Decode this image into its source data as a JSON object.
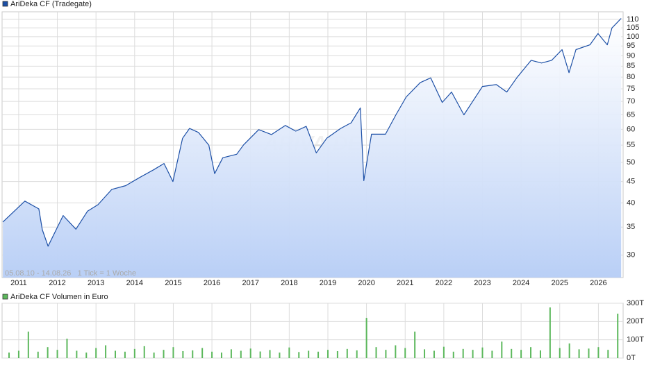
{
  "chart_data": [
    {
      "type": "line",
      "name": "AriDeka CF (Tradegate)",
      "annotation": "05.08.10 - 14.08.26   1 Tick = 1 Woche",
      "watermark": "ARIVA.DE",
      "color": "#1c4fa6",
      "fill_color": "#b9cff6",
      "log_scale": true,
      "grid": true,
      "x": [
        2010.59,
        2011.16,
        2011.52,
        2011.61,
        2011.76,
        2011.88,
        2012.15,
        2012.48,
        2012.78,
        2013.05,
        2013.41,
        2013.77,
        2014.13,
        2014.49,
        2014.76,
        2014.99,
        2015.24,
        2015.42,
        2015.65,
        2015.92,
        2016.07,
        2016.28,
        2016.64,
        2016.82,
        2017.21,
        2017.54,
        2017.9,
        2018.17,
        2018.44,
        2018.7,
        2018.97,
        2019.33,
        2019.6,
        2019.84,
        2019.93,
        2020.13,
        2020.49,
        2020.76,
        2021.03,
        2021.39,
        2021.66,
        2021.96,
        2022.2,
        2022.52,
        2022.73,
        2023.0,
        2023.36,
        2023.63,
        2023.9,
        2024.26,
        2024.53,
        2024.79,
        2025.06,
        2025.24,
        2025.42,
        2025.78,
        2025.99,
        2026.23,
        2026.35,
        2026.59
      ],
      "values": [
        36.0,
        40.4,
        38.7,
        34.5,
        31.5,
        33.2,
        37.3,
        34.6,
        38.2,
        39.6,
        43.1,
        44.0,
        46.0,
        48.0,
        49.7,
        45.0,
        57.1,
        60.3,
        59.0,
        55.0,
        47.0,
        51.3,
        52.3,
        55.1,
        59.9,
        58.3,
        61.3,
        59.4,
        61.0,
        52.7,
        57.1,
        60.3,
        62.2,
        67.5,
        45.2,
        58.4,
        58.4,
        65.0,
        71.8,
        77.6,
        79.7,
        69.6,
        73.7,
        65.0,
        69.6,
        76.0,
        76.8,
        73.7,
        80.0,
        87.8,
        86.5,
        87.8,
        93.1,
        82.0,
        93.1,
        95.6,
        101.7,
        95.6,
        104.9,
        110.6
      ],
      "xlim": [
        2010.57,
        2026.64
      ],
      "xticks": [
        2011,
        2012,
        2013,
        2014,
        2015,
        2016,
        2017,
        2018,
        2019,
        2020,
        2021,
        2022,
        2023,
        2024,
        2025,
        2026
      ],
      "ylim": [
        26.5,
        114.7
      ],
      "yticks": [
        30,
        35,
        40,
        45,
        50,
        55,
        60,
        65,
        70,
        75,
        80,
        85,
        90,
        95,
        100,
        105,
        110
      ]
    },
    {
      "type": "bar",
      "name": "AriDeka CF Volumen in Euro",
      "color": "#5cb85c",
      "grid": true,
      "x": [
        2010.75,
        2011.0,
        2011.25,
        2011.5,
        2011.75,
        2012.0,
        2012.25,
        2012.5,
        2012.75,
        2013.0,
        2013.25,
        2013.5,
        2013.75,
        2014.0,
        2014.25,
        2014.5,
        2014.75,
        2015.0,
        2015.25,
        2015.5,
        2015.75,
        2016.0,
        2016.25,
        2016.5,
        2016.75,
        2017.0,
        2017.25,
        2017.5,
        2017.75,
        2018.0,
        2018.25,
        2018.5,
        2018.75,
        2019.0,
        2019.25,
        2019.5,
        2019.75,
        2020.0,
        2020.25,
        2020.5,
        2020.75,
        2021.0,
        2021.25,
        2021.5,
        2021.75,
        2022.0,
        2022.25,
        2022.5,
        2022.75,
        2023.0,
        2023.25,
        2023.5,
        2023.75,
        2024.0,
        2024.25,
        2024.5,
        2024.75,
        2025.0,
        2025.25,
        2025.5,
        2025.75,
        2026.0,
        2026.25,
        2026.5
      ],
      "values": [
        30000,
        40000,
        145000,
        35000,
        60000,
        45000,
        106000,
        40000,
        30000,
        55000,
        70000,
        40000,
        35000,
        50000,
        65000,
        30000,
        45000,
        60000,
        38000,
        42000,
        55000,
        35000,
        30000,
        48000,
        40000,
        52000,
        36000,
        44000,
        30000,
        58000,
        33000,
        40000,
        35000,
        45000,
        38000,
        50000,
        42000,
        220000,
        60000,
        45000,
        70000,
        55000,
        145000,
        48000,
        40000,
        62000,
        35000,
        50000,
        45000,
        58000,
        40000,
        90000,
        50000,
        45000,
        60000,
        42000,
        277000,
        55000,
        80000,
        48000,
        52000,
        60000,
        45000,
        243000
      ],
      "xlim": [
        2010.57,
        2026.64
      ],
      "xticks": [
        2011,
        2012,
        2013,
        2014,
        2015,
        2016,
        2017,
        2018,
        2019,
        2020,
        2021,
        2022,
        2023,
        2024,
        2025,
        2026
      ],
      "ylim": [
        0,
        300000
      ],
      "yticks": [
        {
          "value": 0,
          "label": "0T"
        },
        {
          "value": 100000,
          "label": "100T"
        },
        {
          "value": 200000,
          "label": "200T"
        },
        {
          "value": 300000,
          "label": "300T"
        }
      ]
    }
  ]
}
